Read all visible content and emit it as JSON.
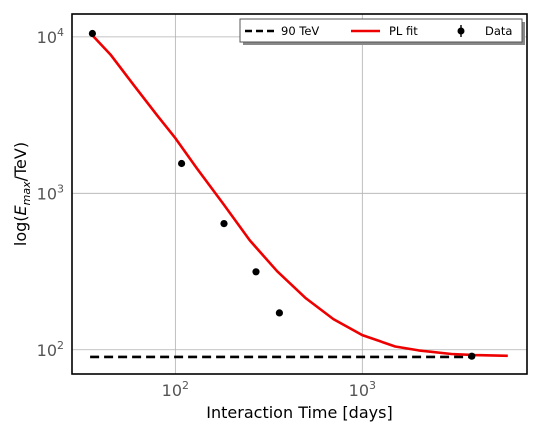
{
  "chart_data": {
    "type": "line",
    "xlabel": "Interaction Time [days]",
    "ylabel_prefix": "log(",
    "ylabel_symbol": "E",
    "ylabel_subscript": "max",
    "ylabel_suffix": "/TeV)",
    "xscale": "log",
    "yscale": "log",
    "xlim": [
      28,
      7600
    ],
    "ylim": [
      70,
      14000
    ],
    "xticks": [
      {
        "value": 100,
        "base": "10",
        "exp": "2"
      },
      {
        "value": 1000,
        "base": "10",
        "exp": "3"
      }
    ],
    "yticks": [
      {
        "value": 100,
        "base": "10",
        "exp": "2"
      },
      {
        "value": 1000,
        "base": "10",
        "exp": "3"
      },
      {
        "value": 10000,
        "base": "10",
        "exp": "4"
      }
    ],
    "grid": true,
    "legend_position": "top-right",
    "series": [
      {
        "name": "90 TeV",
        "kind": "line",
        "style": "dashed",
        "color": "#000000",
        "x": [
          35,
          4000
        ],
        "y": [
          90,
          90
        ]
      },
      {
        "name": "PL fit",
        "kind": "line",
        "style": "solid",
        "color": "#ee0000",
        "x": [
          35,
          45,
          60,
          80,
          100,
          130,
          180,
          250,
          350,
          500,
          700,
          1000,
          1500,
          2000,
          3000,
          4000,
          6000
        ],
        "y": [
          10600,
          7700,
          4900,
          3150,
          2250,
          1450,
          860,
          500,
          318,
          213,
          157,
          124,
          105,
          99,
          94,
          92.5,
          91.5
        ]
      },
      {
        "name": "Data",
        "kind": "scatter",
        "color": "#000000",
        "x": [
          36,
          108,
          182,
          270,
          360,
          3850
        ],
        "y": [
          10500,
          1550,
          640,
          315,
          172,
          91
        ]
      }
    ]
  }
}
